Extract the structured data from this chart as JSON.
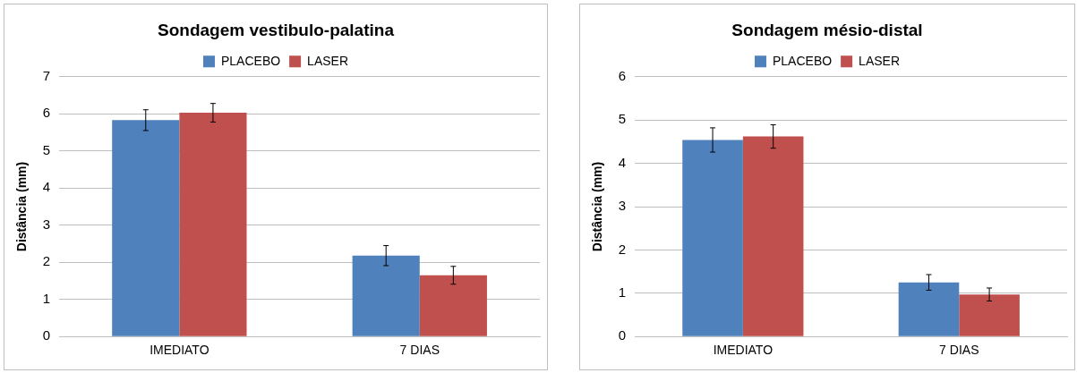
{
  "chart_data": [
    {
      "type": "bar",
      "title": "Sondagem vestibulo-palatina",
      "ylabel": "Distância (mm)",
      "categories": [
        "IMEDIATO",
        "7 DIAS"
      ],
      "series": [
        {
          "name": "PLACEBO",
          "color": "#4f81bd",
          "values": [
            5.83,
            2.18
          ],
          "errors": [
            0.28,
            0.27
          ]
        },
        {
          "name": "LASER",
          "color": "#c0504d",
          "values": [
            6.03,
            1.65
          ],
          "errors": [
            0.25,
            0.24
          ]
        }
      ],
      "ylim": [
        0,
        7
      ],
      "yticks": [
        0,
        1,
        2,
        3,
        4,
        5,
        6,
        7
      ],
      "grid": "y",
      "legend": "top"
    },
    {
      "type": "bar",
      "title": "Sondagem mésio-distal",
      "ylabel": "Distância (mm)",
      "categories": [
        "IMEDIATO",
        "7 DIAS"
      ],
      "series": [
        {
          "name": "PLACEBO",
          "color": "#4f81bd",
          "values": [
            4.54,
            1.25
          ],
          "errors": [
            0.28,
            0.18
          ]
        },
        {
          "name": "LASER",
          "color": "#c0504d",
          "values": [
            4.62,
            0.97
          ],
          "errors": [
            0.27,
            0.15
          ]
        }
      ],
      "ylim": [
        0,
        6
      ],
      "yticks": [
        0,
        1,
        2,
        3,
        4,
        5,
        6
      ],
      "grid": "y",
      "legend": "top"
    }
  ]
}
